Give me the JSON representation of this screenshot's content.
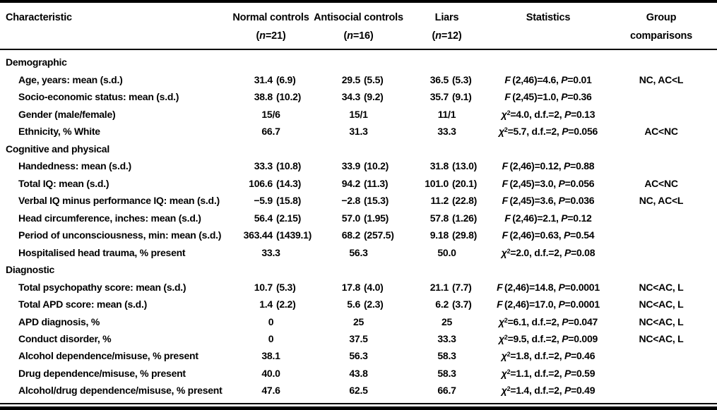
{
  "table": {
    "headers": [
      {
        "line1": "Characteristic",
        "line2": ""
      },
      {
        "line1": "Normal controls",
        "line2": "(n=21)"
      },
      {
        "line1": "Antisocial controls",
        "line2": "(n=16)"
      },
      {
        "line1": "Liars",
        "line2": "(n=12)"
      },
      {
        "line1": "Statistics",
        "line2": ""
      },
      {
        "line1": "Group",
        "line2": "comparisons"
      }
    ],
    "rows": [
      {
        "type": "section",
        "label": "Demographic"
      },
      {
        "type": "item",
        "label": "Age, years: mean (s.d.)",
        "nc": {
          "m": "31.4",
          "s": "(6.9)"
        },
        "ac": {
          "m": "29.5",
          "s": "(5.5)"
        },
        "liars": {
          "m": "36.5",
          "s": "(5.3)"
        },
        "stat": "F (2,46)=4.6, P=0.01",
        "group": "NC, AC<L"
      },
      {
        "type": "item",
        "label": "Socio-economic status: mean (s.d.)",
        "nc": {
          "m": "38.8",
          "s": "(10.2)"
        },
        "ac": {
          "m": "34.3",
          "s": "(9.2)"
        },
        "liars": {
          "m": "35.7",
          "s": "(9.1)"
        },
        "stat": "F (2,45)=1.0, P=0.36",
        "group": ""
      },
      {
        "type": "item",
        "label": "Gender (male/female)",
        "nc": {
          "c": "15/6"
        },
        "ac": {
          "c": "15/1"
        },
        "liars": {
          "c": "11/1"
        },
        "stat": "χ²=4.0, d.f.=2, P=0.13",
        "group": ""
      },
      {
        "type": "item",
        "label": "Ethnicity, % White",
        "nc": {
          "c": "66.7"
        },
        "ac": {
          "c": "31.3"
        },
        "liars": {
          "c": "33.3"
        },
        "stat": "χ²=5.7, d.f.=2, P=0.056",
        "group": "AC<NC"
      },
      {
        "type": "section",
        "label": "Cognitive and physical"
      },
      {
        "type": "item",
        "label": "Handedness: mean (s.d.)",
        "nc": {
          "m": "33.3",
          "s": "(10.8)"
        },
        "ac": {
          "m": "33.9",
          "s": "(10.2)"
        },
        "liars": {
          "m": "31.8",
          "s": "(13.0)"
        },
        "stat": "F (2,46)=0.12, P=0.88",
        "group": ""
      },
      {
        "type": "item",
        "label": "Total IQ: mean (s.d.)",
        "nc": {
          "m": "106.6",
          "s": "(14.3)"
        },
        "ac": {
          "m": "94.2",
          "s": "(11.3)"
        },
        "liars": {
          "m": "101.0",
          "s": "(20.1)"
        },
        "stat": "F (2,45)=3.0, P=0.056",
        "group": "AC<NC"
      },
      {
        "type": "item",
        "label": "Verbal IQ minus performance IQ: mean (s.d.)",
        "nc": {
          "m": "−5.9",
          "s": "(15.8)"
        },
        "ac": {
          "m": "−2.8",
          "s": "(15.3)"
        },
        "liars": {
          "m": "11.2",
          "s": "(22.8)"
        },
        "stat": "F (2,45)=3.6, P=0.036",
        "group": "NC, AC<L"
      },
      {
        "type": "item",
        "label": "Head circumference, inches: mean (s.d.)",
        "nc": {
          "m": "56.4",
          "s": "(2.15)"
        },
        "ac": {
          "m": "57.0",
          "s": "(1.95)"
        },
        "liars": {
          "m": "57.8",
          "s": "(1.26)"
        },
        "stat": "F (2,46)=2.1, P=0.12",
        "group": ""
      },
      {
        "type": "item",
        "label": "Period of unconsciousness, min: mean (s.d.)",
        "nc": {
          "m": "363.44",
          "s": "(1439.1)"
        },
        "ac": {
          "m": "68.2",
          "s": "(257.5)"
        },
        "liars": {
          "m": "9.18",
          "s": "(29.8)"
        },
        "stat": "F (2,46)=0.63, P=0.54",
        "group": ""
      },
      {
        "type": "item",
        "label": "Hospitalised head trauma, % present",
        "nc": {
          "c": "33.3"
        },
        "ac": {
          "c": "56.3"
        },
        "liars": {
          "c": "50.0"
        },
        "stat": "χ²=2.0, d.f.=2, P=0.08",
        "group": ""
      },
      {
        "type": "section",
        "label": "Diagnostic"
      },
      {
        "type": "item",
        "label": "Total psychopathy score: mean (s.d.)",
        "nc": {
          "m": "10.7",
          "s": "(5.3)"
        },
        "ac": {
          "m": "17.8",
          "s": "(4.0)"
        },
        "liars": {
          "m": "21.1",
          "s": "(7.7)"
        },
        "stat": "F (2,46)=14.8, P=0.0001",
        "group": "NC<AC, L"
      },
      {
        "type": "item",
        "label": "Total APD score: mean (s.d.)",
        "nc": {
          "m": "1.4",
          "s": "(2.2)"
        },
        "ac": {
          "m": "5.6",
          "s": "(2.3)"
        },
        "liars": {
          "m": "6.2",
          "s": "(3.7)"
        },
        "stat": "F (2,46)=17.0, P=0.0001",
        "group": "NC<AC, L"
      },
      {
        "type": "item",
        "label": "APD diagnosis, %",
        "nc": {
          "c": "0"
        },
        "ac": {
          "c": "25"
        },
        "liars": {
          "c": "25"
        },
        "stat": "χ²=6.1, d.f.=2, P=0.047",
        "group": "NC<AC, L"
      },
      {
        "type": "item",
        "label": "Conduct disorder, %",
        "nc": {
          "c": "0"
        },
        "ac": {
          "c": "37.5"
        },
        "liars": {
          "c": "33.3"
        },
        "stat": "χ²=9.5, d.f.=2, P=0.009",
        "group": "NC<AC, L"
      },
      {
        "type": "item",
        "label": "Alcohol dependence/misuse, % present",
        "nc": {
          "c": "38.1"
        },
        "ac": {
          "c": "56.3"
        },
        "liars": {
          "c": "58.3"
        },
        "stat": "χ²=1.8, d.f.=2, P=0.46",
        "group": ""
      },
      {
        "type": "item",
        "label": "Drug dependence/misuse, % present",
        "nc": {
          "c": "40.0"
        },
        "ac": {
          "c": "43.8"
        },
        "liars": {
          "c": "58.3"
        },
        "stat": "χ²=1.1, d.f.=2, P=0.59",
        "group": ""
      },
      {
        "type": "item",
        "label": "Alcohol/drug dependence/misuse, % present",
        "nc": {
          "c": "47.6"
        },
        "ac": {
          "c": "62.5"
        },
        "liars": {
          "c": "66.7"
        },
        "stat": "χ²=1.4, d.f.=2, P=0.49",
        "group": ""
      }
    ],
    "colors": {
      "text": "#000000",
      "background": "#ffffff",
      "rule": "#000000"
    }
  }
}
